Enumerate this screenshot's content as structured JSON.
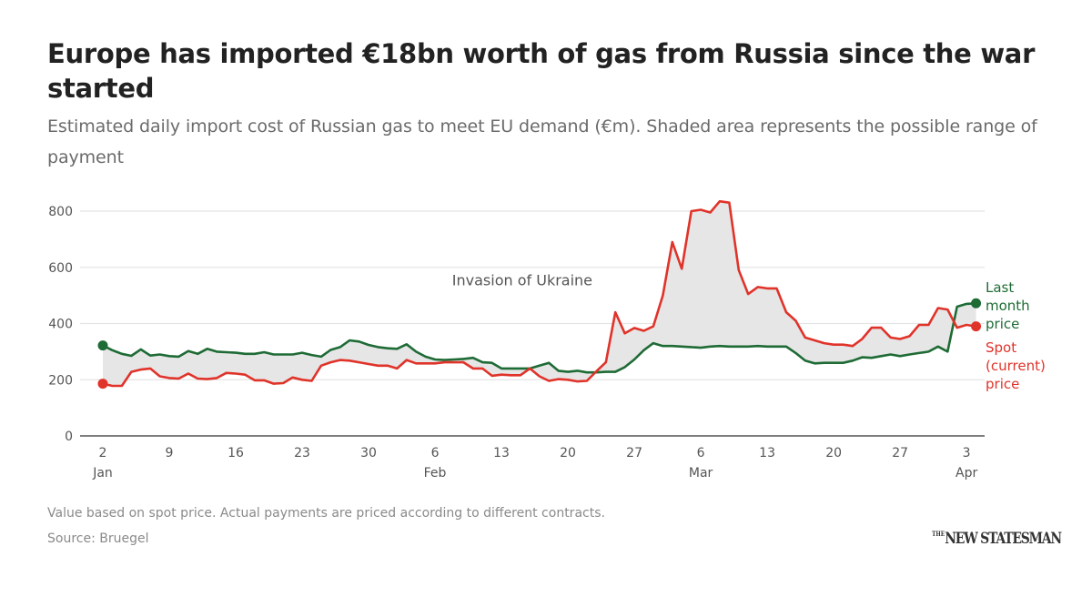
{
  "header": {
    "title": "Europe has imported €18bn worth of gas from Russia since the war started",
    "subtitle": "Estimated daily import cost of Russian gas to meet EU demand (€m). Shaded area represents the possible range of payment"
  },
  "footer": {
    "note": "Value based on spot price. Actual payments are priced according to different contracts.",
    "source": "Source: Bruegel",
    "brand_prefix": "THE",
    "brand": "NEW STATESMAN"
  },
  "colors": {
    "last_month": "#1e6b35",
    "spot": "#e0332a",
    "shade": "#e6e6e6",
    "grid": "#e4e4e4",
    "axis": "#555555"
  },
  "chart_data": {
    "type": "line",
    "title": "Europe has imported €18bn worth of gas from Russia since the war started",
    "xlabel": "",
    "ylabel": "€m",
    "ylim": [
      0,
      800
    ],
    "yticks": [
      0,
      200,
      400,
      600,
      800
    ],
    "ytick_labels": [
      "0",
      "200",
      "400",
      "600",
      "800"
    ],
    "grid": true,
    "x_unit": "days since 2 Jan 2022",
    "xlim": [
      0,
      92
    ],
    "xticks": [
      {
        "day": 0,
        "label": "2",
        "month": "Jan"
      },
      {
        "day": 7,
        "label": "9",
        "month": ""
      },
      {
        "day": 14,
        "label": "16",
        "month": ""
      },
      {
        "day": 21,
        "label": "23",
        "month": ""
      },
      {
        "day": 28,
        "label": "30",
        "month": ""
      },
      {
        "day": 35,
        "label": "6",
        "month": "Feb"
      },
      {
        "day": 42,
        "label": "13",
        "month": ""
      },
      {
        "day": 49,
        "label": "20",
        "month": ""
      },
      {
        "day": 56,
        "label": "27",
        "month": ""
      },
      {
        "day": 63,
        "label": "6",
        "month": "Mar"
      },
      {
        "day": 70,
        "label": "13",
        "month": ""
      },
      {
        "day": 77,
        "label": "20",
        "month": ""
      },
      {
        "day": 84,
        "label": "27",
        "month": ""
      },
      {
        "day": 91,
        "label": "3",
        "month": "Apr"
      }
    ],
    "annotations": [
      {
        "text": "Invasion of Ukraine",
        "day": 44,
        "value": 555
      }
    ],
    "legend": "right-end labels",
    "series": [
      {
        "name": "Last month price",
        "label_lines": [
          "Last",
          "month",
          "price"
        ],
        "color": "#1e6b35",
        "x": [
          0,
          1,
          2,
          3,
          4,
          5,
          6,
          7,
          8,
          9,
          10,
          11,
          12,
          13,
          14,
          15,
          16,
          17,
          18,
          19,
          20,
          21,
          22,
          23,
          24,
          25,
          26,
          27,
          28,
          29,
          30,
          31,
          32,
          33,
          34,
          35,
          36,
          37,
          38,
          39,
          40,
          41,
          42,
          43,
          44,
          45,
          46,
          47,
          48,
          49,
          50,
          51,
          52,
          53,
          54,
          55,
          56,
          57,
          58,
          59,
          60,
          61,
          62,
          63,
          64,
          65,
          66,
          67,
          68,
          69,
          70,
          71,
          72,
          73,
          74,
          75,
          76,
          77,
          78,
          79,
          80,
          81,
          82,
          83,
          84,
          85,
          86,
          87,
          88,
          89,
          90,
          91,
          92
        ],
        "values": [
          322,
          305,
          292,
          285,
          308,
          286,
          290,
          284,
          282,
          302,
          292,
          310,
          300,
          298,
          296,
          292,
          292,
          298,
          290,
          290,
          290,
          296,
          288,
          282,
          306,
          316,
          340,
          336,
          324,
          316,
          312,
          310,
          326,
          300,
          282,
          272,
          270,
          272,
          274,
          278,
          262,
          260,
          240,
          240,
          240,
          240,
          250,
          260,
          232,
          228,
          232,
          226,
          226,
          228,
          228,
          245,
          272,
          305,
          330,
          320,
          320,
          318,
          316,
          314,
          318,
          320,
          318,
          318,
          318,
          320,
          318,
          318,
          318,
          295,
          268,
          258,
          260,
          260,
          260,
          268,
          280,
          278,
          284,
          290,
          284,
          290,
          295,
          300,
          318,
          300,
          460,
          470,
          472
        ]
      },
      {
        "name": "Spot (current) price",
        "label_lines": [
          "Spot",
          "(current)",
          "price"
        ],
        "color": "#e0332a",
        "x": [
          0,
          1,
          2,
          3,
          4,
          5,
          6,
          7,
          8,
          9,
          10,
          11,
          12,
          13,
          14,
          15,
          16,
          17,
          18,
          19,
          20,
          21,
          22,
          23,
          24,
          25,
          26,
          27,
          28,
          29,
          30,
          31,
          32,
          33,
          34,
          35,
          36,
          37,
          38,
          39,
          40,
          41,
          42,
          43,
          44,
          45,
          46,
          47,
          48,
          49,
          50,
          51,
          52,
          53,
          54,
          55,
          56,
          57,
          58,
          59,
          60,
          61,
          62,
          63,
          64,
          65,
          66,
          67,
          68,
          69,
          70,
          71,
          72,
          73,
          74,
          75,
          76,
          77,
          78,
          79,
          80,
          81,
          82,
          83,
          84,
          85,
          86,
          87,
          88,
          89,
          90,
          91,
          92
        ],
        "values": [
          186,
          178,
          178,
          228,
          236,
          240,
          212,
          206,
          204,
          222,
          204,
          202,
          206,
          224,
          222,
          218,
          198,
          198,
          186,
          188,
          208,
          200,
          196,
          250,
          262,
          270,
          268,
          262,
          256,
          250,
          250,
          240,
          270,
          258,
          258,
          258,
          262,
          262,
          262,
          240,
          240,
          214,
          218,
          216,
          216,
          240,
          212,
          196,
          202,
          200,
          194,
          196,
          230,
          262,
          440,
          365,
          384,
          374,
          390,
          500,
          690,
          595,
          800,
          805,
          795,
          835,
          830,
          590,
          505,
          530,
          525,
          525,
          440,
          410,
          350,
          340,
          330,
          325,
          325,
          320,
          345,
          385,
          385,
          350,
          345,
          355,
          395,
          395,
          455,
          450,
          385,
          395,
          390
        ]
      }
    ]
  }
}
